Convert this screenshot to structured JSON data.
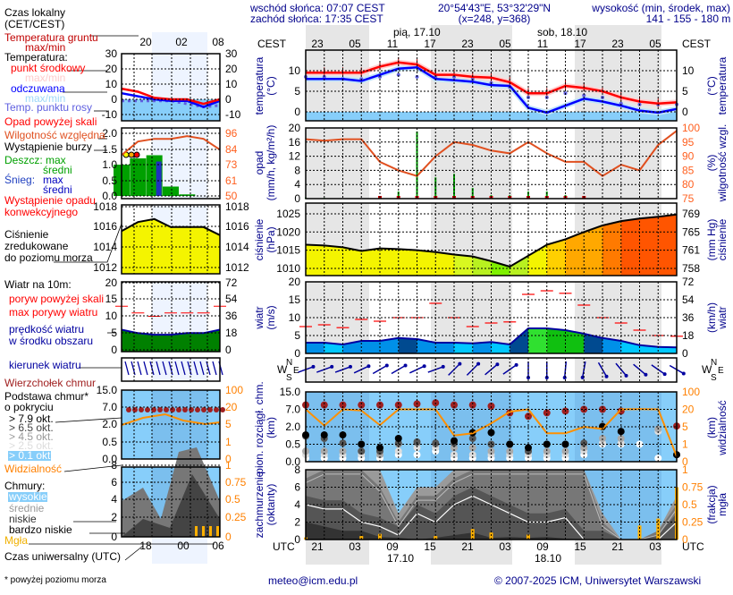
{
  "header": {
    "sunrise": "wschód słońca: 07:07 CEST",
    "sunset": "zachód słońca: 17:35 CEST",
    "coords": "20°54'43\"E, 53°32'29\"N",
    "grid": "(x=248,  y=368)",
    "elev_label": "wysokość (min, środek, max)",
    "elev_values": "141 - 155 - 180 m"
  },
  "time_axis": {
    "tz_local": "CEST",
    "tz_utc": "UTC",
    "day1": "pią, 17.10",
    "day2": "sob, 18.10",
    "local_ticks": [
      "23",
      "05",
      "11",
      "17",
      "23",
      "05",
      "11",
      "17",
      "23",
      "05"
    ],
    "utc_ticks": [
      "21",
      "03",
      "09",
      "15",
      "21",
      "03",
      "09",
      "15",
      "21",
      "03"
    ],
    "date1": "17.10",
    "date2": "18.10"
  },
  "legend": {
    "local_time": "Czas lokalny",
    "local_time2": "(CET/CEST)",
    "ground_temp": "Temperatura gruntu",
    "ground_temp2": "max/min",
    "temp": "Temperatura:",
    "temp_mid": "punkt środkowy",
    "temp_maxmin": "max/min",
    "feels": "odczuwana",
    "feels_maxmin": "max/min",
    "dew": "Temp. punktu rosy",
    "precip_over": "Opad powyżej skali",
    "humidity": "Wilgotność względna",
    "storm": "Wystąpienie burzy",
    "rain": "Deszcz: max",
    "rain_avg": "średni",
    "snow": "Śnieg:",
    "snow_max": "max",
    "snow_avg": "średni",
    "conv": "Wystąpienie opadu",
    "conv2": "konwekcyjnego",
    "pressure1": "Ciśnienie",
    "pressure2": "zredukowane",
    "pressure3": "do poziomu morza",
    "wind": "Wiatr na 10m:",
    "gust_over": "poryw powyżej skali",
    "gust": "max porywy wiatru",
    "wind_speed": "prędkość wiatru",
    "wind_speed2": "w środku obszaru",
    "wind_dir": "kierunek wiatru",
    "cloud_top": "Wierzchołek chmur",
    "cloud_base": "Podstawa chmur*",
    "cloud_base2": "o pokryciu",
    "c79": "> 7.9 okt.",
    "c65": "> 6.5 okt.",
    "c45": "> 4.5 okt.",
    "c25": "> 2.5 okt.",
    "c01": "> 0.1 okt.",
    "visibility": "Widzialność",
    "clouds": "Chmury:",
    "high": "wysokie",
    "mid": "średnie",
    "low": "niskie",
    "vlow": "bardzo niskie",
    "fog": "Mgła",
    "utc_time": "Czas uniwersalny (UTC)",
    "footnote": "* powyżej poziomu morza"
  },
  "mini_axis": {
    "top_ticks": [
      "20",
      "02",
      "08"
    ],
    "bottom_ticks": [
      "18",
      "00",
      "06"
    ],
    "temp": [
      "30",
      "20",
      "10",
      "0",
      "-10"
    ],
    "precip": [
      "2.0",
      "1.5",
      "1.0",
      "0.5",
      "0.0"
    ],
    "humidity": [
      "96",
      "84",
      "73",
      "61",
      "50"
    ],
    "pressure": [
      "1018",
      "1016",
      "1014",
      "1012"
    ],
    "wind": [
      "20",
      "15",
      "10",
      "5",
      "0"
    ],
    "wind_kmh": [
      "72",
      "54",
      "36",
      "18",
      "0"
    ],
    "cloud": [
      "15.0",
      "7.0",
      "2.0",
      "0.5",
      "0.0"
    ],
    "vis": [
      "100",
      "20",
      "5",
      "1",
      "0"
    ],
    "cover": [
      "8",
      "6",
      "4",
      "2",
      "0"
    ],
    "fog": [
      "1",
      "0.75",
      "0.5",
      "0.25",
      "0"
    ]
  },
  "axis_titles": {
    "temp": [
      "temperatura",
      "(°C)"
    ],
    "precip": [
      "opad",
      "(mm/h, kg/m²/h)"
    ],
    "humidity": [
      "(%)",
      "wilgotność wzgl."
    ],
    "pressure": [
      "ciśnienie",
      "(hPa)"
    ],
    "pressure_r": [
      "(mm Hg)",
      "ciśnienie"
    ],
    "wind": [
      "wiatr",
      "(m/s)"
    ],
    "wind_r": [
      "(km/h)",
      "wiatr"
    ],
    "cloud": [
      "pion. rozciągł. chm.",
      "(km)"
    ],
    "vis": [
      "(km)",
      "widzialność"
    ],
    "cover": [
      "zachmurzenie",
      "(oktanty)"
    ],
    "fog": [
      "(frakcja)",
      "mgła"
    ],
    "compass": {
      "n": "N",
      "w": "W",
      "s": "S",
      "e": "E"
    }
  },
  "colors": {
    "temp": "#ff0000",
    "feels": "#0000ff",
    "dew": "#6060e0",
    "humidity": "#e05020",
    "rain": "#00a000",
    "gust": "#ff0000",
    "wind": "#0000a0",
    "visibility": "#ff9000",
    "cloud_top": "#a02020",
    "fog": "#ffb000",
    "night": "#e6e6e6",
    "sky": "#87cefa"
  },
  "chart_data": [
    {
      "type": "line",
      "panel": "temperature",
      "ylabel": "temperatura (°C)",
      "yticks": [
        10,
        5,
        0
      ],
      "ylim": [
        -2,
        15
      ],
      "series": [
        {
          "name": "punkt środkowy",
          "values": [
            9.5,
            9.5,
            9.5,
            9.5,
            11,
            12,
            11.5,
            9,
            9,
            8.5,
            8.3,
            7.2,
            4.5,
            4.5,
            6.3,
            5.8,
            5,
            3.5,
            2.5,
            2,
            2.3
          ]
        },
        {
          "name": "odczuwana",
          "values": [
            8,
            8,
            8,
            7.5,
            9,
            10.5,
            10.8,
            8,
            7.7,
            7.3,
            6.5,
            6.3,
            1,
            -0.2,
            1.5,
            3.2,
            2.5,
            1.5,
            0.3,
            -0.2,
            0.7
          ]
        },
        {
          "name": "Temp. punktu rosy",
          "values": [
            8.5,
            8.5,
            8,
            8,
            8.5,
            9,
            8.5,
            8.5,
            8.5,
            8,
            7,
            6,
            3.5,
            3.5,
            4.5,
            4,
            3.5,
            2,
            1.8,
            1.8,
            1.8
          ]
        }
      ]
    },
    {
      "type": "bar",
      "panel": "precipitation",
      "ylabel": "opad (mm/h, kg/m²/h)",
      "yticks": [
        20,
        16,
        12,
        8,
        4,
        0
      ],
      "ylim": [
        0,
        20
      ],
      "series": [
        {
          "name": "Deszcz: max",
          "values": [
            0.3,
            0.2,
            0,
            0,
            0.5,
            2,
            19,
            6,
            7,
            3,
            1,
            1,
            2,
            2,
            1,
            0.5,
            0,
            0,
            0,
            0,
            0
          ]
        }
      ]
    },
    {
      "type": "line",
      "panel": "humidity",
      "ylabel": "(%) wilgotność wzgl.",
      "yticks": [
        100,
        95,
        90,
        85,
        80,
        75
      ],
      "ylim": [
        75,
        100
      ],
      "series": [
        {
          "name": "Wilgotność względna",
          "values": [
            96,
            95.5,
            96,
            96,
            88,
            85,
            83,
            90,
            95,
            94,
            92,
            91,
            95,
            91,
            88,
            88,
            83,
            87,
            85,
            94,
            99
          ]
        }
      ]
    },
    {
      "type": "area",
      "panel": "pressure",
      "ylabel": "ciśnienie (hPa)",
      "yticks": [
        1025,
        1020,
        1015,
        1010
      ],
      "yticks_right": [
        "769",
        "765",
        "761",
        "758"
      ],
      "ylim": [
        1008,
        1028
      ],
      "series": [
        {
          "name": "Ciśnienie",
          "values": [
            1016.5,
            1016.3,
            1015.8,
            1014.8,
            1015.5,
            1015.3,
            1015,
            1014.5,
            1013.8,
            1013.3,
            1012,
            1010.5,
            1013.5,
            1016.5,
            1018,
            1020,
            1021.8,
            1023,
            1023.7,
            1024.2,
            1024.8
          ]
        }
      ]
    },
    {
      "type": "area",
      "panel": "wind",
      "ylabel": "wiatr (m/s)",
      "yticks": [
        20,
        15,
        10,
        5,
        0
      ],
      "yticks_right": [
        "72",
        "54",
        "36",
        "18",
        "0"
      ],
      "ylim": [
        0,
        20
      ],
      "series": [
        {
          "name": "prędkość wiatru",
          "values": [
            3,
            3,
            2.5,
            3.5,
            3.5,
            4.3,
            4,
            3,
            3,
            2.8,
            3.2,
            2.5,
            7,
            7,
            6.5,
            5.5,
            4.3,
            3.5,
            2.3,
            1.8,
            1.7
          ]
        },
        {
          "name": "max porywy wiatru",
          "values": [
            7.5,
            8,
            7.2,
            9.5,
            9,
            10,
            10,
            14,
            10,
            7.5,
            8.5,
            8.8,
            16.5,
            17.5,
            16.8,
            13.5,
            10,
            8.5,
            6.5,
            5,
            4.8
          ]
        }
      ]
    },
    {
      "type": "scatter",
      "panel": "wind_direction",
      "ylabel": "kierunek wiatru",
      "series": [
        {
          "name": "kierunek wiatru (deg, from)",
          "values": [
            250,
            250,
            250,
            245,
            240,
            240,
            245,
            250,
            225,
            225,
            230,
            235,
            0,
            0,
            5,
            10,
            330,
            320,
            310,
            305,
            300
          ]
        }
      ]
    },
    {
      "type": "scatter",
      "panel": "cloud_base",
      "ylabel": "pion. rozciągł. chm. (km)",
      "yticks": [
        15,
        7,
        2,
        0.5,
        0
      ],
      "yticks_right": [
        100,
        20,
        5,
        1,
        0
      ],
      "series": [
        {
          "name": "Wierzchołek chmur",
          "values": [
            9,
            9,
            9,
            9,
            9,
            9,
            9.5,
            10,
            9,
            9,
            8.5,
            6,
            5,
            6,
            6.5,
            7,
            7,
            6.5,
            null,
            null,
            2.2
          ]
        },
        {
          "name": "> 7.9 okt.",
          "values": [
            1.3,
            1.3,
            1.3,
            0.5,
            0.4,
            1,
            null,
            null,
            0.8,
            1.5,
            1.5,
            0.5,
            0.4,
            0.5,
            0.5,
            null,
            2,
            1.6,
            null,
            null,
            0.2
          ]
        },
        {
          "name": "> 6.5 okt.",
          "values": [
            1.2,
            1,
            0.6,
            0.3,
            0.3,
            0.6,
            0.7,
            0.6,
            0.6,
            1,
            0.5,
            0.5,
            0.3,
            0.5,
            0.5,
            0.6,
            2.2,
            null,
            null,
            null,
            0.2
          ]
        },
        {
          "name": "> 4.5 okt.",
          "values": [
            0.3,
            0.3,
            0.3,
            0.3,
            0.2,
            0.5,
            0.6,
            0.5,
            0.4,
            0.4,
            0.3,
            0.3,
            0.3,
            0.3,
            0.3,
            0.4,
            1,
            1,
            null,
            1.8,
            null
          ]
        },
        {
          "name": "> 2.5 okt.",
          "values": [
            0.2,
            0.2,
            0.2,
            0.2,
            0.2,
            0.3,
            0.4,
            0.4,
            0.2,
            0.2,
            0.2,
            0.2,
            0.2,
            0.2,
            0.2,
            0.3,
            0.6,
            0.6,
            null,
            1.6,
            null
          ]
        },
        {
          "name": "> 0.1 okt.",
          "values": [
            0.1,
            0.1,
            0.1,
            0.1,
            0.1,
            0.2,
            0.2,
            0.3,
            0.1,
            0.1,
            0.1,
            0.1,
            0.1,
            0.1,
            0.1,
            0.2,
            0.5,
            0.5,
            0.5,
            0.1,
            null
          ]
        },
        {
          "name": "Widzialność (km)",
          "values": [
            20,
            6,
            20,
            19,
            6.5,
            20,
            20,
            20,
            3,
            3.5,
            8,
            18,
            20,
            3.5,
            3.5,
            5,
            4.5,
            20,
            21,
            20,
            0.3
          ]
        }
      ]
    },
    {
      "type": "area",
      "panel": "cloud_cover",
      "ylabel": "zachmurzenie (oktanty)",
      "yticks": [
        8,
        6,
        4,
        2,
        0
      ],
      "yticks_right": [
        "1",
        "0.75",
        "0.5",
        "0.25",
        "0"
      ],
      "ylim": [
        0,
        8
      ],
      "series": [
        {
          "name": "wysokie",
          "values": [
            8,
            8,
            8,
            8,
            8,
            3,
            6,
            6,
            8,
            8,
            8,
            8,
            8,
            8,
            8,
            8,
            3,
            0,
            0,
            1,
            5
          ]
        },
        {
          "name": "średnie",
          "values": [
            7,
            8,
            8,
            8,
            6,
            2,
            5,
            5,
            7,
            8,
            8,
            8,
            8,
            8,
            8,
            8,
            2,
            0,
            0,
            1,
            4
          ]
        },
        {
          "name": "niskie",
          "values": [
            5,
            4.5,
            4.5,
            3,
            2.5,
            1.5,
            4,
            3,
            5,
            6,
            5,
            4,
            3,
            3,
            3.5,
            1,
            1,
            0,
            0,
            0.5,
            3
          ]
        },
        {
          "name": "bardzo niskie",
          "values": [
            2,
            1.5,
            1,
            1,
            0.3,
            0.2,
            0,
            0.2,
            0.5,
            0.8,
            0.2,
            0.3,
            0.2,
            0.3,
            0.1,
            0,
            0,
            0,
            0,
            0,
            0
          ]
        },
        {
          "name": "Mgła (frakcja)",
          "values": [
            0.03,
            0,
            0,
            0.05,
            0.08,
            0,
            0,
            0.05,
            0,
            0.15,
            0.1,
            0,
            0.07,
            0,
            0,
            0,
            0,
            0,
            0.2,
            0.3,
            0.75
          ]
        }
      ]
    }
  ],
  "mini_data": {
    "temp_mid": [
      7,
      5,
      1,
      0,
      0,
      -3,
      0
    ],
    "feels": [
      4,
      2,
      0,
      -1,
      -1,
      -5,
      -1
    ],
    "dew": [
      -1,
      -1,
      -1,
      -1,
      -3,
      -5,
      -4
    ],
    "humidity": [
      80,
      90,
      92,
      92,
      94,
      92,
      84
    ],
    "rain": [
      1.0,
      1.2,
      1.3,
      0.3,
      0.05,
      0,
      0
    ],
    "pressure": [
      1015.6,
      1016.5,
      1016.8,
      1016,
      1016,
      1016,
      1015.2
    ],
    "wind": [
      6,
      5,
      4.5,
      4.5,
      5,
      5,
      6
    ],
    "gust": [
      13,
      11,
      10,
      11,
      11,
      11,
      13
    ]
  },
  "footer": {
    "email": "meteo@icm.edu.pl",
    "copyright": "© 2007-2025 ICM, Uniwersytet Warszawski"
  }
}
